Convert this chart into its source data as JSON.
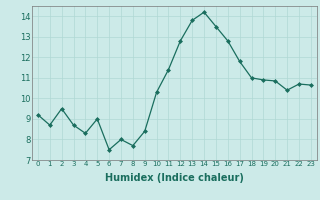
{
  "x": [
    0,
    1,
    2,
    3,
    4,
    5,
    6,
    7,
    8,
    9,
    10,
    11,
    12,
    13,
    14,
    15,
    16,
    17,
    18,
    19,
    20,
    21,
    22,
    23
  ],
  "y": [
    9.2,
    8.7,
    9.5,
    8.7,
    8.3,
    9.0,
    7.5,
    8.0,
    7.7,
    8.4,
    10.3,
    11.4,
    12.8,
    13.8,
    14.2,
    13.5,
    12.8,
    11.8,
    11.0,
    10.9,
    10.85,
    10.4,
    10.7,
    10.65
  ],
  "xlabel": "Humidex (Indice chaleur)",
  "ylim": [
    7,
    14.5
  ],
  "xlim": [
    -0.5,
    23.5
  ],
  "yticks": [
    7,
    8,
    9,
    10,
    11,
    12,
    13,
    14
  ],
  "xticks": [
    0,
    1,
    2,
    3,
    4,
    5,
    6,
    7,
    8,
    9,
    10,
    11,
    12,
    13,
    14,
    15,
    16,
    17,
    18,
    19,
    20,
    21,
    22,
    23
  ],
  "line_color": "#1a6e5e",
  "marker_color": "#1a6e5e",
  "bg_color": "#cceae8",
  "grid_color": "#b0d8d4",
  "tick_color": "#1a6e5e",
  "xlabel_fontsize": 7.0,
  "xtick_fontsize": 5.0,
  "ytick_fontsize": 6.0
}
